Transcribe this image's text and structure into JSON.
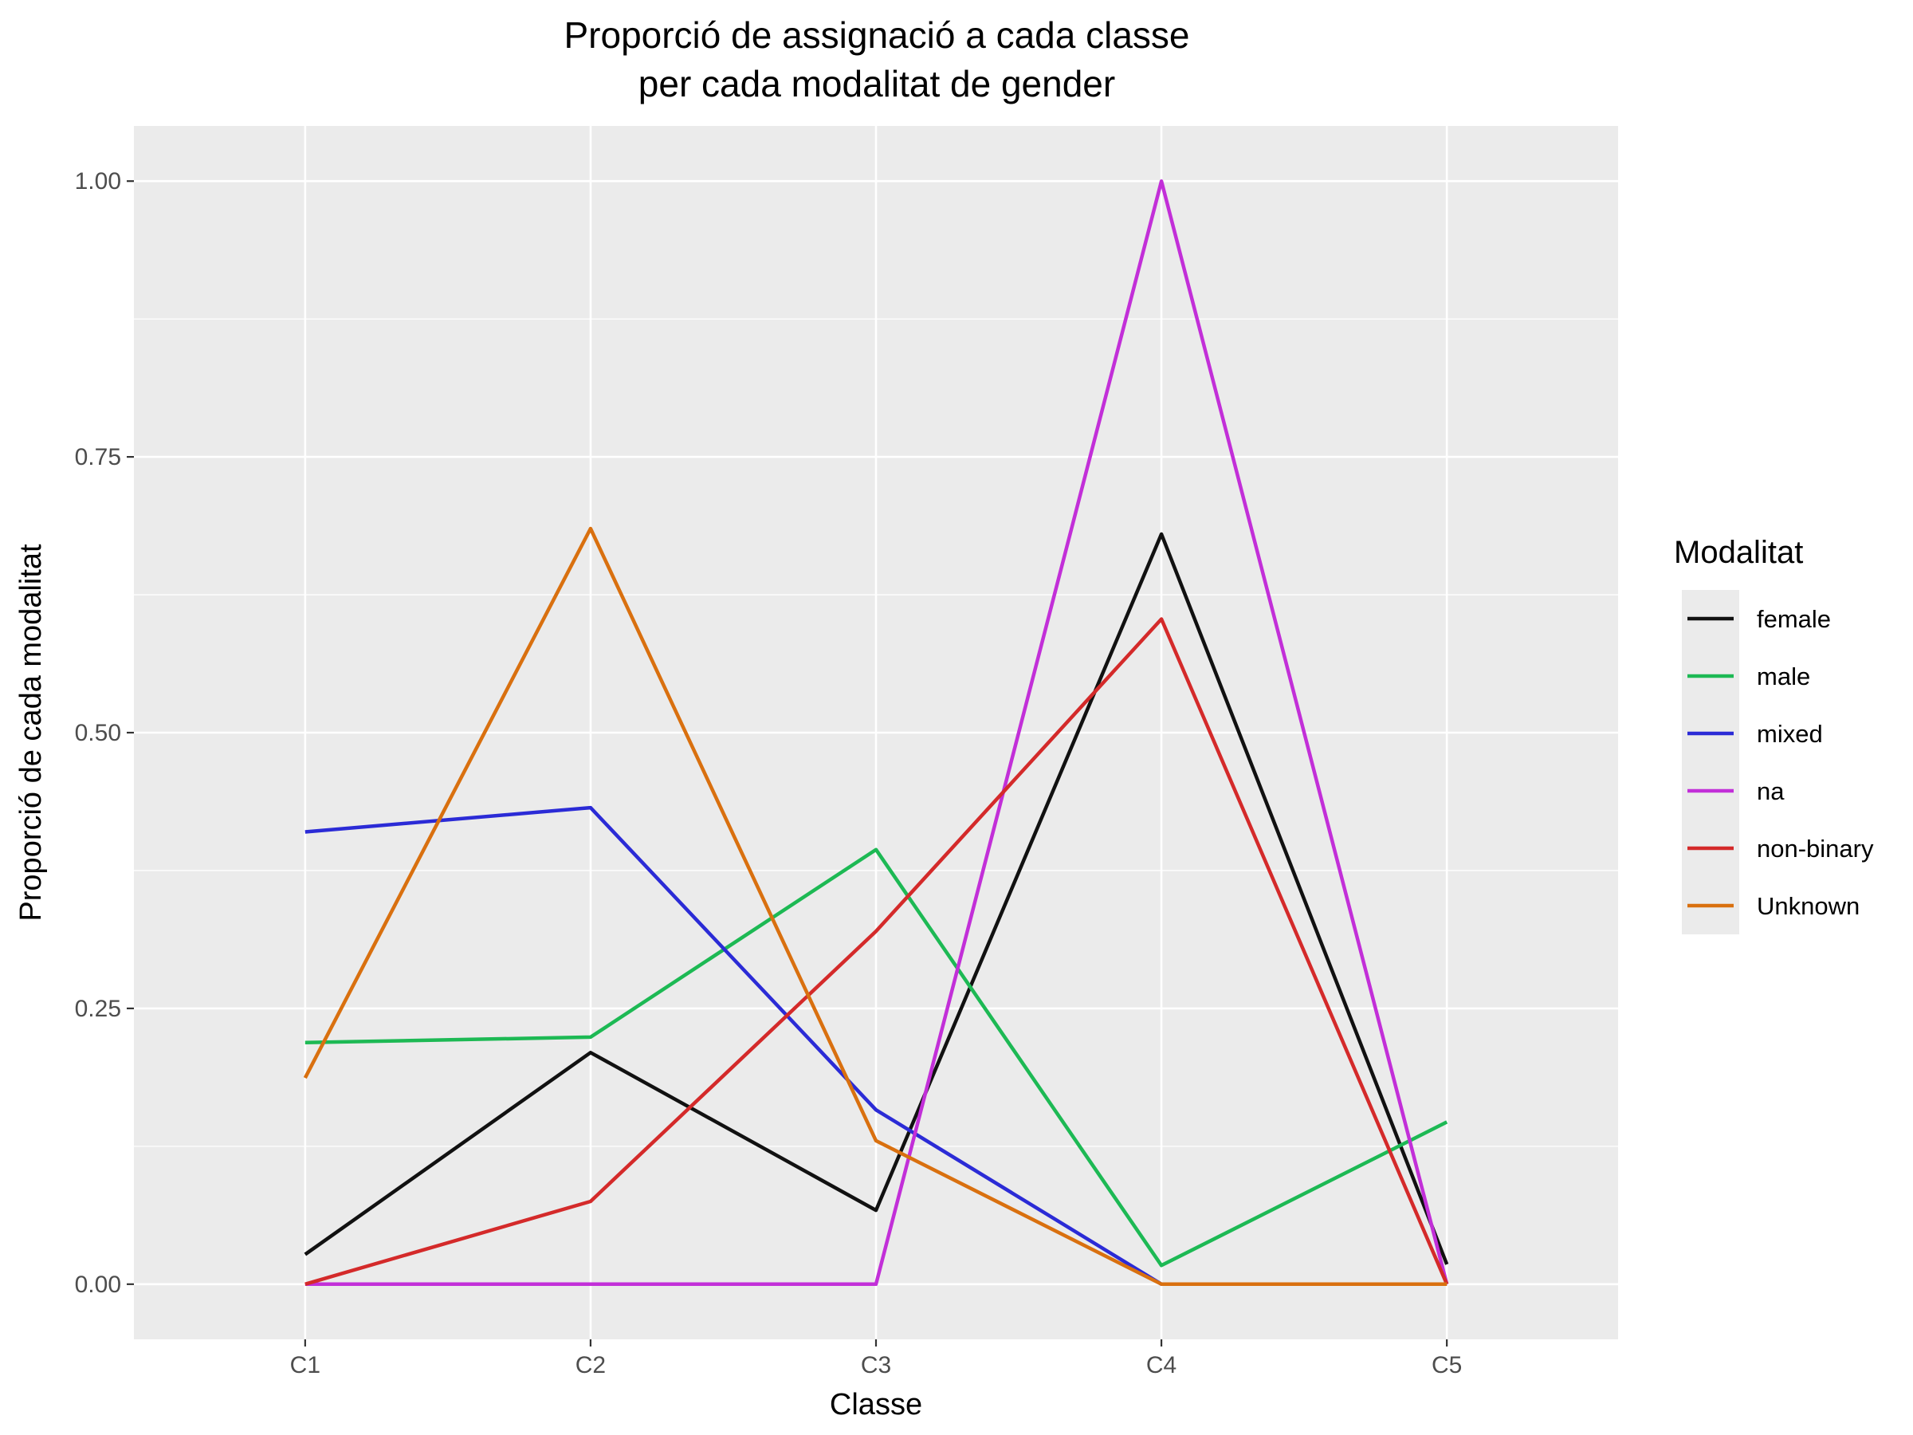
{
  "chart_data": {
    "type": "line",
    "title_lines": [
      "Proporció de assignació a cada classe",
      "per cada modalitat de gender"
    ],
    "xlabel": "Classe",
    "ylabel": "Proporció de cada modalitat",
    "categories": [
      "C1",
      "C2",
      "C3",
      "C4",
      "C5"
    ],
    "ylim": [
      -0.05,
      1.05
    ],
    "yticks": [
      0,
      0.25,
      0.5,
      0.75,
      1.0
    ],
    "ytick_labels": [
      "0.00",
      "0.25",
      "0.50",
      "0.75",
      "1.00"
    ],
    "grid": true,
    "legend": {
      "title": "Modalitat",
      "position": "right"
    },
    "series": [
      {
        "name": "female",
        "color": "#111111",
        "values": [
          0.027,
          0.21,
          0.067,
          0.68,
          0.018
        ]
      },
      {
        "name": "male",
        "color": "#1db954",
        "values": [
          0.219,
          0.224,
          0.394,
          0.017,
          0.147
        ]
      },
      {
        "name": "mixed",
        "color": "#2b2bd6",
        "values": [
          0.41,
          0.432,
          0.158,
          0.0,
          0.0
        ]
      },
      {
        "name": "na",
        "color": "#c22fd8",
        "values": [
          0.0,
          0.0,
          0.0,
          1.0,
          0.0
        ]
      },
      {
        "name": "non-binary",
        "color": "#d42a2a",
        "values": [
          0.0,
          0.075,
          0.32,
          0.603,
          0.0
        ]
      },
      {
        "name": "Unknown",
        "color": "#d9700f",
        "values": [
          0.187,
          0.685,
          0.13,
          0.0,
          0.0
        ]
      }
    ]
  }
}
